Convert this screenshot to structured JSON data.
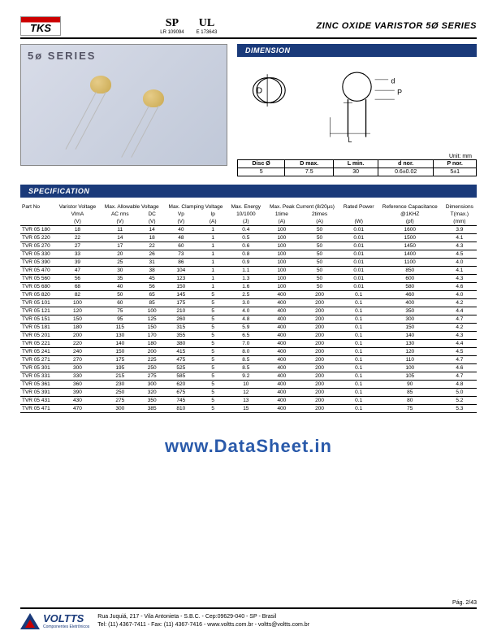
{
  "header": {
    "logo_text": "TKS",
    "cert1_mark": "SP",
    "cert1_sub": "LR 109094",
    "cert2_mark": "UL",
    "cert2_sub": "E 173643",
    "title": "ZINC OXIDE VARISTOR 5Ø SERIES"
  },
  "photo": {
    "series_label": "5ø SERIES"
  },
  "dimension": {
    "bar_label": "DIMENSION",
    "unit_label": "Unit: mm",
    "labels": {
      "D": "D",
      "d": "d",
      "P": "P",
      "L": "L"
    },
    "columns": [
      "Disc Ø",
      "D max.",
      "L min.",
      "d nor.",
      "P nor."
    ],
    "row": [
      "5",
      "7.5",
      "30",
      "0.6±0.02",
      "5±1"
    ]
  },
  "specification": {
    "bar_label": "SPECIFICATION",
    "header_groups": [
      {
        "label": "Part No",
        "span": 1
      },
      {
        "label": "Varistor Voltage",
        "span": 1
      },
      {
        "label": "Max. Allowable Voltage",
        "span": 2
      },
      {
        "label": "Max. Clamping Voltage",
        "span": 2
      },
      {
        "label": "Max. Energy",
        "span": 1
      },
      {
        "label": "Max. Peak Current (8/20µs)",
        "span": 2
      },
      {
        "label": "Rated Power",
        "span": 1
      },
      {
        "label": "Reference Capacitance",
        "span": 1
      },
      {
        "label": "Dimensions",
        "span": 1
      }
    ],
    "header_sub": [
      "",
      "VlmA",
      "AC rms",
      "DC",
      "Vp",
      "Ip",
      "10/1000",
      "1time",
      "2times",
      "",
      "@1KHZ",
      "T(max.)"
    ],
    "header_units": [
      "",
      "(V)",
      "(V)",
      "(V)",
      "(V)",
      "(A)",
      "(J)",
      "(A)",
      "(A)",
      "(W)",
      "(pf)",
      "(mm)"
    ],
    "rows": [
      [
        "TVR 05 180",
        "18",
        "11",
        "14",
        "40",
        "1",
        "0.4",
        "100",
        "50",
        "0.01",
        "1600",
        "3.9"
      ],
      [
        "TVR 05 220",
        "22",
        "14",
        "18",
        "48",
        "1",
        "0.5",
        "100",
        "50",
        "0.01",
        "1500",
        "4.1"
      ],
      [
        "TVR 05 270",
        "27",
        "17",
        "22",
        "60",
        "1",
        "0.6",
        "100",
        "50",
        "0.01",
        "1450",
        "4.3"
      ],
      [
        "TVR 05 330",
        "33",
        "20",
        "26",
        "73",
        "1",
        "0.8",
        "100",
        "50",
        "0.01",
        "1400",
        "4.5"
      ],
      [
        "TVR 05 390",
        "39",
        "25",
        "31",
        "86",
        "1",
        "0.9",
        "100",
        "50",
        "0.01",
        "1100",
        "4.0"
      ],
      [
        "TVR 05 470",
        "47",
        "30",
        "38",
        "104",
        "1",
        "1.1",
        "100",
        "50",
        "0.01",
        "850",
        "4.1"
      ],
      [
        "TVR 05 560",
        "56",
        "35",
        "45",
        "123",
        "1",
        "1.3",
        "100",
        "50",
        "0.01",
        "600",
        "4.3"
      ],
      [
        "TVR 05 680",
        "68",
        "40",
        "56",
        "150",
        "1",
        "1.6",
        "100",
        "50",
        "0.01",
        "580",
        "4.6"
      ],
      [
        "TVR 05 820",
        "82",
        "50",
        "65",
        "145",
        "5",
        "2.5",
        "400",
        "200",
        "0.1",
        "460",
        "4.0"
      ],
      [
        "TVR 05 101",
        "100",
        "60",
        "85",
        "175",
        "5",
        "3.0",
        "400",
        "200",
        "0.1",
        "400",
        "4.2"
      ],
      [
        "TVR 05 121",
        "120",
        "75",
        "100",
        "210",
        "5",
        "4.0",
        "400",
        "200",
        "0.1",
        "350",
        "4.4"
      ],
      [
        "TVR 05 151",
        "150",
        "95",
        "125",
        "260",
        "5",
        "4.8",
        "400",
        "200",
        "0.1",
        "300",
        "4.7"
      ],
      [
        "TVR 05 181",
        "180",
        "115",
        "150",
        "315",
        "5",
        "5.9",
        "400",
        "200",
        "0.1",
        "150",
        "4.2"
      ],
      [
        "TVR 05 201",
        "200",
        "130",
        "170",
        "355",
        "5",
        "6.5",
        "400",
        "200",
        "0.1",
        "140",
        "4.3"
      ],
      [
        "TVR 05 221",
        "220",
        "140",
        "180",
        "380",
        "5",
        "7.0",
        "400",
        "200",
        "0.1",
        "130",
        "4.4"
      ],
      [
        "TVR 05 241",
        "240",
        "150",
        "200",
        "415",
        "5",
        "8.0",
        "400",
        "200",
        "0.1",
        "120",
        "4.5"
      ],
      [
        "TVR 05 271",
        "270",
        "175",
        "225",
        "475",
        "5",
        "8.5",
        "400",
        "200",
        "0.1",
        "110",
        "4.7"
      ],
      [
        "TVR 05 301",
        "300",
        "195",
        "250",
        "525",
        "5",
        "8.5",
        "400",
        "200",
        "0.1",
        "100",
        "4.6"
      ],
      [
        "TVR 05 331",
        "330",
        "215",
        "275",
        "585",
        "5",
        "9.2",
        "400",
        "200",
        "0.1",
        "105",
        "4.7"
      ],
      [
        "TVR 05 361",
        "360",
        "230",
        "300",
        "620",
        "5",
        "10",
        "400",
        "200",
        "0.1",
        "90",
        "4.8"
      ],
      [
        "TVR 05 391",
        "390",
        "250",
        "320",
        "675",
        "5",
        "12",
        "400",
        "200",
        "0.1",
        "85",
        "5.0"
      ],
      [
        "TVR 05 431",
        "430",
        "275",
        "350",
        "745",
        "5",
        "13",
        "400",
        "200",
        "0.1",
        "80",
        "5.2"
      ],
      [
        "TVR 05 471",
        "470",
        "300",
        "385",
        "810",
        "5",
        "15",
        "400",
        "200",
        "0.1",
        "75",
        "5.3"
      ]
    ]
  },
  "watermark_text": "www.DataSheet.in",
  "footer": {
    "page_label": "Pág. 2/43",
    "brand": "VOLTTS",
    "brand_sub": "Componentes Eletrônicos",
    "addr_line1": "Rua Juquiá, 217  -  Vila Antonieta  -  S.B.C.  -  Cep:09629-040  -  SP - Brasil",
    "addr_line2": "Tel: (11) 4367-7411  -  Fax: (11) 4367-7416  -  www.voltts.com.br - voltts@voltts.com.br"
  },
  "colors": {
    "bar_bg": "#1a3a7a",
    "watermark": "#2a5aaa",
    "accent_red": "#cc0000"
  }
}
